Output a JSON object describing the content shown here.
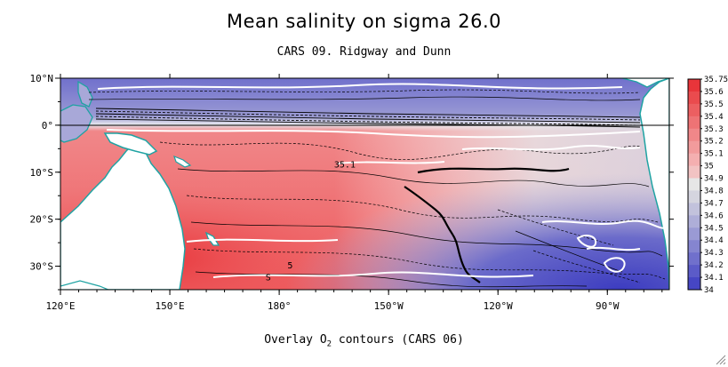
{
  "title": "Mean salinity on sigma 26.0",
  "subtitle": "CARS 09. Ridgway and Dunn",
  "footer": {
    "prefix": "Overlay O",
    "subscript": "2",
    "suffix": " contours (CARS 06)"
  },
  "map": {
    "lon_range": [
      120,
      287
    ],
    "lat_range": [
      -35,
      10
    ],
    "lat_ticks": [
      {
        "lat": 10,
        "label": "10°N"
      },
      {
        "lat": 0,
        "label": "0°"
      },
      {
        "lat": -10,
        "label": "10°S"
      },
      {
        "lat": -20,
        "label": "20°S"
      },
      {
        "lat": -30,
        "label": "30°S"
      }
    ],
    "lon_ticks": [
      {
        "lon": 120,
        "label": "120°E"
      },
      {
        "lon": 150,
        "label": "150°E"
      },
      {
        "lon": 180,
        "label": "180°"
      },
      {
        "lon": 210,
        "label": "150°W"
      },
      {
        "lon": 240,
        "label": "120°W"
      },
      {
        "lon": 270,
        "label": "90°W"
      }
    ],
    "contour_labels": [
      {
        "text": "35.1",
        "lon": 198,
        "lat": -9
      },
      {
        "text": "5",
        "lon": 183,
        "lat": -30.5
      },
      {
        "text": "S",
        "lon": 177,
        "lat": -33
      }
    ],
    "colors": {
      "land": "#ffffff",
      "coast": "#1fa3a3",
      "o2_contour": "#ffffff",
      "contour": "#000000"
    }
  },
  "colorbar": {
    "levels": [
      "35.75",
      "35.6",
      "35.5",
      "35.4",
      "35.3",
      "35.2",
      "35.1",
      "35",
      "34.9",
      "34.8",
      "34.7",
      "34.6",
      "34.5",
      "34.4",
      "34.3",
      "34.2",
      "34.1",
      "34"
    ],
    "colors": [
      "#e8353a",
      "#ea4b4e",
      "#ec5f61",
      "#ee7375",
      "#f08789",
      "#f29b9c",
      "#f4afb0",
      "#f2c3c3",
      "#e6e6e6",
      "#d5d5df",
      "#c2c2dc",
      "#aeaed8",
      "#9a9ad4",
      "#8585d0",
      "#7070cc",
      "#5b5bc8",
      "#4646c4"
    ]
  }
}
